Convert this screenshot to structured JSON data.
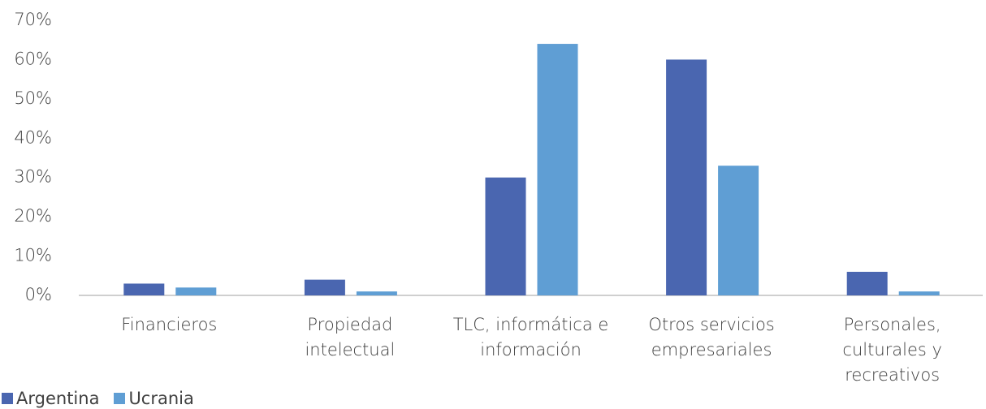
{
  "chart_data": {
    "type": "bar",
    "categories": [
      "Financieros",
      "Propiedad intelectual",
      "TLC, informática e información",
      "Otros servicios empresariales",
      "Personales, culturales y recreativos"
    ],
    "series": [
      {
        "name": "Argentina",
        "color": "#4a66b0",
        "values": [
          3,
          4,
          30,
          60,
          6
        ]
      },
      {
        "name": "Ucrania",
        "color": "#5f9ed4",
        "values": [
          2,
          1,
          64,
          33,
          1
        ]
      }
    ],
    "ylim": [
      0,
      70
    ],
    "yticks": [
      {
        "value": 0,
        "label": "0%"
      },
      {
        "value": 10,
        "label": "10%"
      },
      {
        "value": 20,
        "label": "20%"
      },
      {
        "value": 30,
        "label": "30%"
      },
      {
        "value": 40,
        "label": "40%"
      },
      {
        "value": 50,
        "label": "50%"
      },
      {
        "value": 60,
        "label": "60%"
      },
      {
        "value": 70,
        "label": "70%"
      }
    ],
    "grid": false,
    "legend": "bottom-left"
  }
}
